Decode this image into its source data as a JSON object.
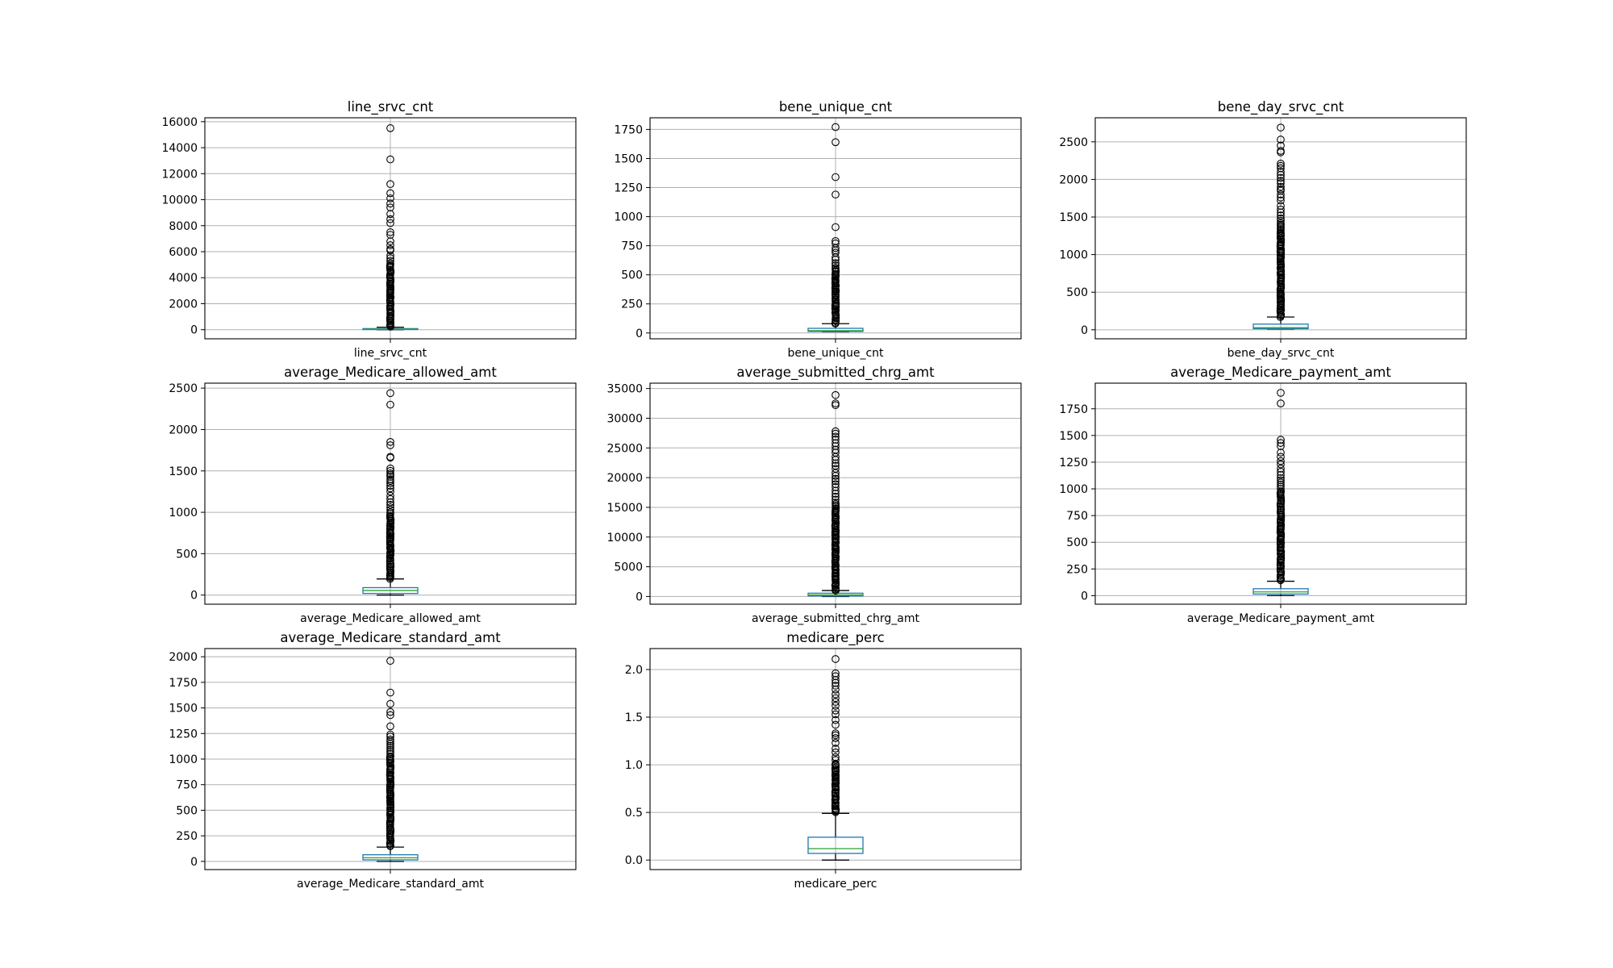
{
  "colors": {
    "box": "#1f77b4",
    "median": "#2ca02c",
    "whisker": "#000000",
    "grid": "#b0b0b0",
    "flier_edge": "#000000",
    "axes_frame": "#000000",
    "background": "#ffffff"
  },
  "chart_data": [
    {
      "type": "box",
      "title": "line_srvc_cnt",
      "category": "line_srvc_cnt",
      "ylim": [
        -700,
        16300
      ],
      "yticks": [
        0,
        2000,
        4000,
        6000,
        8000,
        10000,
        12000,
        14000,
        16000
      ],
      "ytick_labels": [
        "0",
        "2000",
        "4000",
        "6000",
        "8000",
        "10000",
        "12000",
        "14000",
        "16000"
      ],
      "grid": true,
      "stats": {
        "whislo": 1,
        "q1": 14,
        "median": 33,
        "q3": 85,
        "whishi": 190
      },
      "fliers": [
        15500,
        13100,
        11200,
        10500,
        10100,
        9700,
        9400,
        8900,
        8500,
        8200,
        7500,
        7300,
        6800,
        6500,
        6200,
        6100,
        5700,
        5500,
        5300,
        5100
      ],
      "dense_flier_range": [
        200,
        5000
      ]
    },
    {
      "type": "box",
      "title": "bene_unique_cnt",
      "category": "bene_unique_cnt",
      "ylim": [
        -50,
        1850
      ],
      "yticks": [
        0,
        250,
        500,
        750,
        1000,
        1250,
        1500,
        1750
      ],
      "ytick_labels": [
        "0",
        "250",
        "500",
        "750",
        "1000",
        "1250",
        "1500",
        "1750"
      ],
      "grid": true,
      "stats": {
        "whislo": 11,
        "q1": 13,
        "median": 20,
        "q3": 40,
        "whishi": 80
      },
      "fliers": [
        1770,
        1640,
        1340,
        1190,
        910,
        790,
        770,
        730,
        710,
        690,
        650,
        630,
        600,
        580,
        560,
        550
      ],
      "dense_flier_range": [
        82,
        540
      ]
    },
    {
      "type": "box",
      "title": "bene_day_srvc_cnt",
      "category": "bene_day_srvc_cnt",
      "ylim": [
        -120,
        2820
      ],
      "yticks": [
        0,
        500,
        1000,
        1500,
        2000,
        2500
      ],
      "ytick_labels": [
        "0",
        "500",
        "1000",
        "1500",
        "2000",
        "2500"
      ],
      "grid": true,
      "stats": {
        "whislo": 11,
        "q1": 14,
        "median": 28,
        "q3": 75,
        "whishi": 170
      },
      "fliers": [
        2690,
        2530,
        2450,
        2380,
        2360,
        2210,
        2180,
        2150,
        2100,
        2060,
        2020,
        1980,
        1950,
        1900,
        1870,
        1850,
        1800,
        1760,
        1720,
        1650,
        1600,
        1560,
        1520,
        1480,
        1450,
        1420,
        1400,
        1380,
        1360,
        1340,
        1320
      ],
      "dense_flier_range": [
        175,
        1300
      ]
    },
    {
      "type": "box",
      "title": "average_Medicare_allowed_amt",
      "category": "average_Medicare_allowed_amt",
      "ylim": [
        -110,
        2560
      ],
      "yticks": [
        0,
        500,
        1000,
        1500,
        2000,
        2500
      ],
      "ytick_labels": [
        "0",
        "500",
        "1000",
        "1500",
        "2000",
        "2500"
      ],
      "grid": true,
      "stats": {
        "whislo": 0,
        "q1": 20,
        "median": 55,
        "q3": 90,
        "whishi": 195
      },
      "fliers": [
        2440,
        2300,
        1850,
        1810,
        1670,
        1660,
        1530,
        1500,
        1470,
        1450,
        1430,
        1400,
        1380,
        1350,
        1320,
        1290,
        1250,
        1200,
        1160,
        1120,
        1090,
        1060,
        1030,
        1000,
        980
      ],
      "dense_flier_range": [
        200,
        960
      ]
    },
    {
      "type": "box",
      "title": "average_submitted_chrg_amt",
      "category": "average_submitted_chrg_amt",
      "ylim": [
        -1300,
        35900
      ],
      "yticks": [
        0,
        5000,
        10000,
        15000,
        20000,
        25000,
        30000,
        35000
      ],
      "ytick_labels": [
        "0",
        "5000",
        "10000",
        "15000",
        "20000",
        "25000",
        "30000",
        "35000"
      ],
      "grid": true,
      "stats": {
        "whislo": 0,
        "q1": 80,
        "median": 250,
        "q3": 550,
        "whishi": 1000
      },
      "fliers": [
        33900,
        32500,
        32200,
        27800,
        27400,
        26900,
        26400,
        25800,
        25300,
        24700,
        24200,
        23500,
        23000,
        22400,
        22000,
        21500,
        20800,
        20300,
        19800,
        19400,
        18900,
        18400,
        17800,
        17300,
        16800,
        16300,
        15800
      ],
      "dense_flier_range": [
        1050,
        15500
      ]
    },
    {
      "type": "box",
      "title": "average_Medicare_payment_amt",
      "category": "average_Medicare_payment_amt",
      "ylim": [
        -80,
        1990
      ],
      "yticks": [
        0,
        250,
        500,
        750,
        1000,
        1250,
        1500,
        1750
      ],
      "ytick_labels": [
        "0",
        "250",
        "500",
        "750",
        "1000",
        "1250",
        "1500",
        "1750"
      ],
      "grid": true,
      "stats": {
        "whislo": 0,
        "q1": 15,
        "median": 35,
        "q3": 65,
        "whishi": 135
      },
      "fliers": [
        1900,
        1800,
        1460,
        1430,
        1400,
        1340,
        1300,
        1260,
        1230,
        1190,
        1160,
        1130,
        1100,
        1080,
        1060,
        1040,
        1020,
        1000
      ],
      "dense_flier_range": [
        140,
        980
      ]
    },
    {
      "type": "box",
      "title": "average_Medicare_standard_amt",
      "category": "average_Medicare_standard_amt",
      "ylim": [
        -80,
        2080
      ],
      "yticks": [
        0,
        250,
        500,
        750,
        1000,
        1250,
        1500,
        1750,
        2000
      ],
      "ytick_labels": [
        "0",
        "250",
        "500",
        "750",
        "1000",
        "1250",
        "1500",
        "1750",
        "2000"
      ],
      "grid": true,
      "stats": {
        "whislo": 0,
        "q1": 15,
        "median": 35,
        "q3": 65,
        "whishi": 140
      },
      "fliers": [
        1960,
        1650,
        1540,
        1460,
        1430,
        1320,
        1240,
        1220,
        1190,
        1170,
        1150,
        1130,
        1110,
        1090,
        1070,
        1050
      ],
      "dense_flier_range": [
        145,
        1030
      ]
    },
    {
      "type": "box",
      "title": "medicare_perc",
      "category": "medicare_perc",
      "ylim": [
        -0.1,
        2.22
      ],
      "yticks": [
        0.0,
        0.5,
        1.0,
        1.5,
        2.0
      ],
      "ytick_labels": [
        "0.0",
        "0.5",
        "1.0",
        "1.5",
        "2.0"
      ],
      "grid": true,
      "stats": {
        "whislo": 0.0,
        "q1": 0.07,
        "median": 0.12,
        "q3": 0.24,
        "whishi": 0.49
      },
      "fliers": [
        2.11,
        1.96,
        1.93,
        1.89,
        1.86,
        1.83,
        1.79,
        1.74,
        1.7,
        1.66,
        1.62,
        1.57,
        1.53,
        1.47,
        1.42,
        1.33,
        1.31,
        1.28,
        1.23,
        1.17,
        1.13,
        1.08,
        1.05,
        1.01
      ],
      "dense_flier_range": [
        0.5,
        1.0
      ]
    }
  ]
}
